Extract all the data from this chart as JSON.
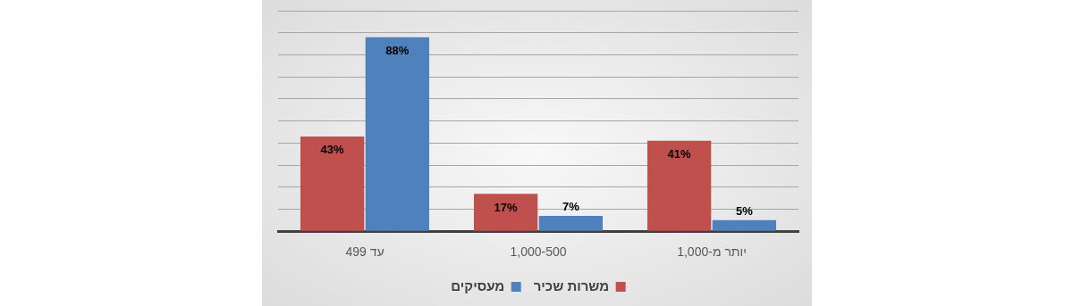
{
  "chart_data": {
    "type": "bar",
    "categories": [
      "עד 499",
      "1,000-500",
      "יותר מ-1,000"
    ],
    "series": [
      {
        "name": "משרות שכיר",
        "color": "#c0504d",
        "values": [
          43,
          17,
          41
        ],
        "value_labels": [
          "43%",
          "17%",
          "41%"
        ]
      },
      {
        "name": "מעסיקים",
        "color": "#4f81bd",
        "values": [
          88,
          7,
          5
        ],
        "value_labels": [
          "88%",
          "7%",
          "5%"
        ]
      }
    ],
    "ylim": [
      0,
      100
    ],
    "yticks": [
      0,
      {
        "value": 10,
        "label": null
      },
      {
        "value": 20,
        "label": null
      },
      {
        "value": 30,
        "label": null
      },
      {
        "value": 40,
        "label": null
      },
      {
        "value": 50,
        "label": null
      },
      {
        "value": 60,
        "label": null
      },
      {
        "value": 70,
        "label": null
      },
      {
        "value": 80,
        "label": null
      },
      {
        "value": 90,
        "label": null
      },
      {
        "value": 100,
        "label": null
      }
    ],
    "grid": "y",
    "legend": "bottom",
    "tick_labels": "x"
  }
}
